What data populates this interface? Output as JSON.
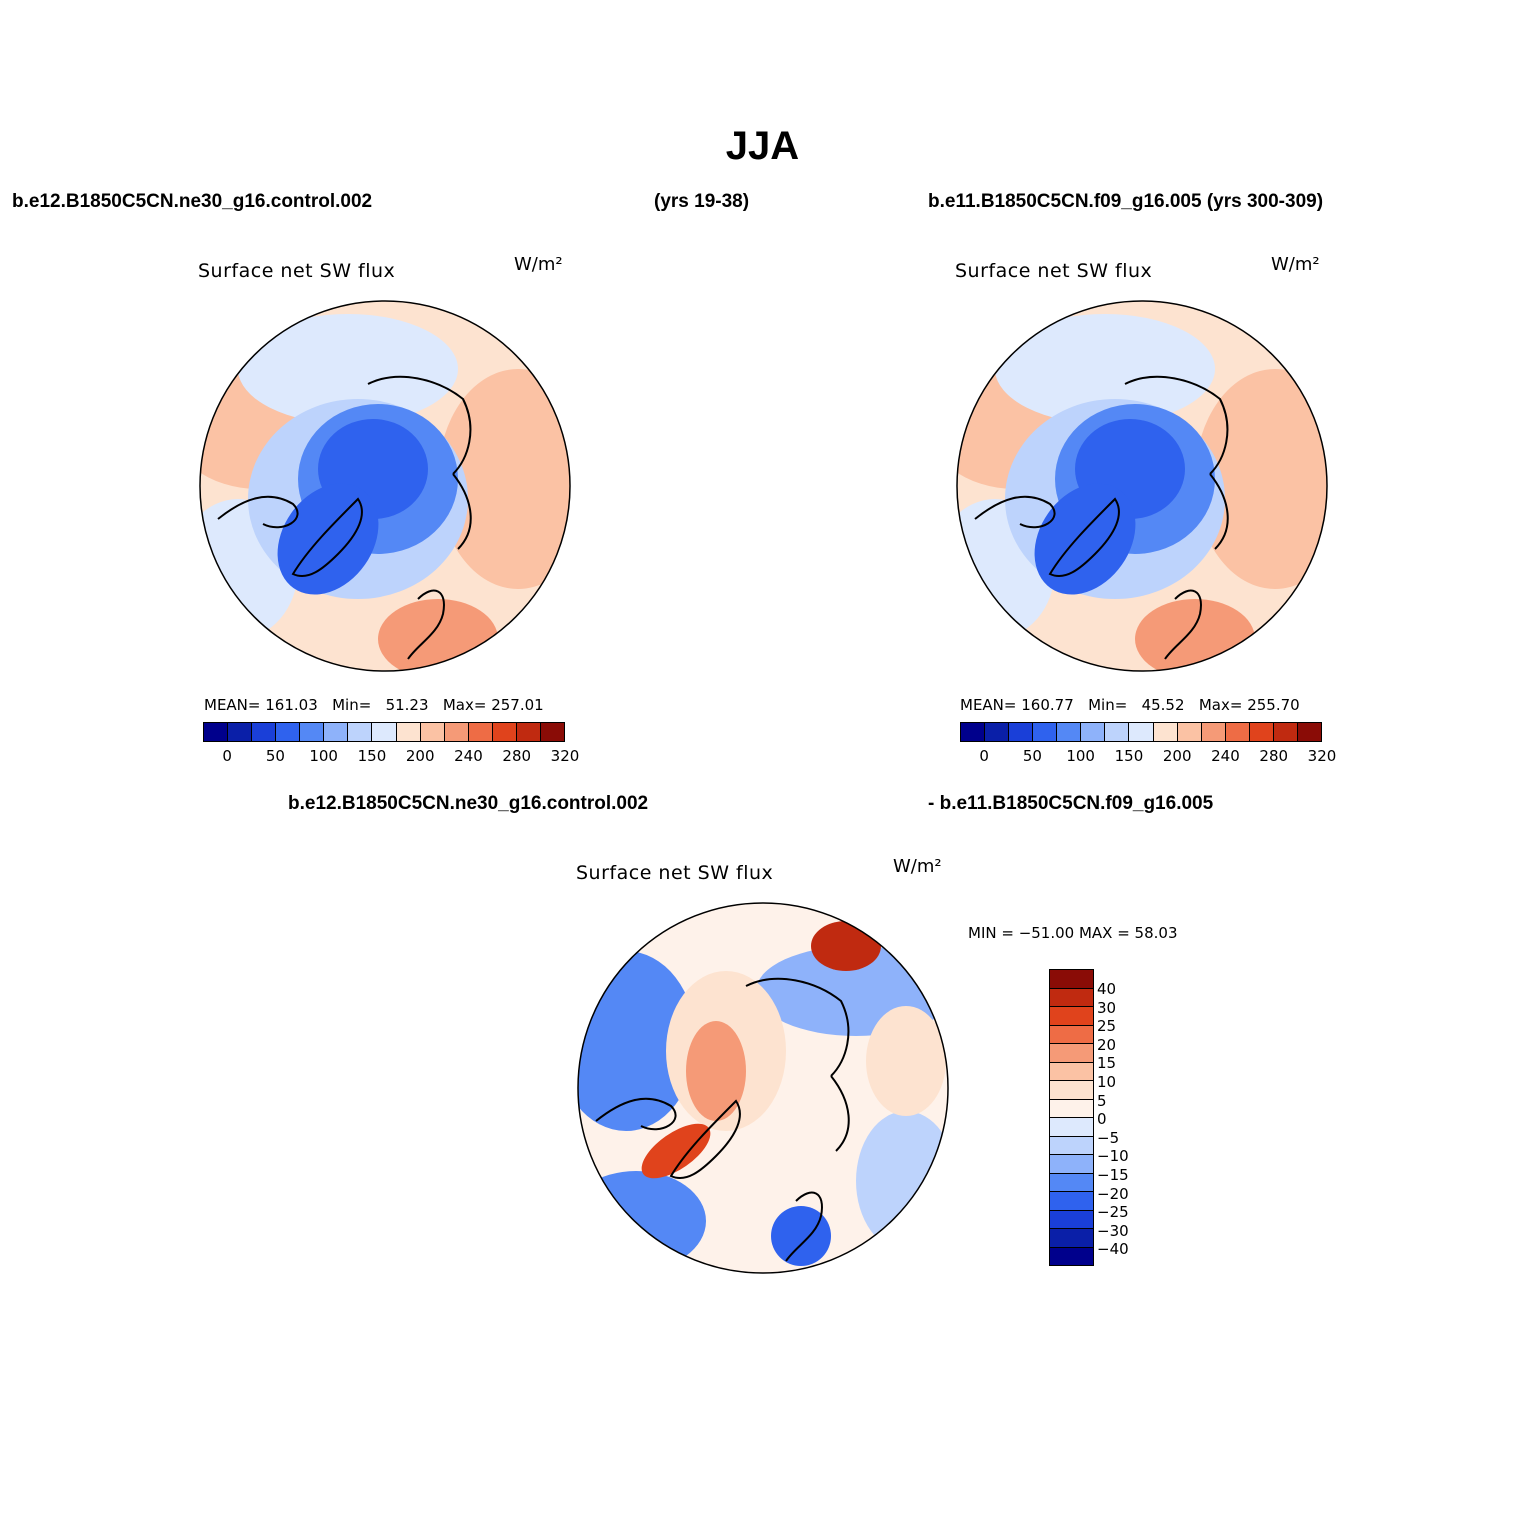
{
  "title": "JJA",
  "header": {
    "case1": "b.e12.B1850C5CN.ne30_g16.control.002",
    "years1": "(yrs 19-38)",
    "case2_with_years": "b.e11.B1850C5CN.f09_g16.005 (yrs 300-309)"
  },
  "panel1": {
    "field": "Surface net SW flux",
    "units": "W/m²",
    "stats": {
      "mean_label": "MEAN=",
      "mean": "161.03",
      "min_label": "Min=",
      "min": "51.23",
      "max_label": "Max=",
      "max": "257.01"
    },
    "colorbar_ticks": [
      "0",
      "50",
      "100",
      "150",
      "200",
      "240",
      "280",
      "320"
    ]
  },
  "panel2": {
    "field": "Surface net SW flux",
    "units": "W/m²",
    "stats": {
      "mean_label": "MEAN=",
      "mean": "160.77",
      "min_label": "Min=",
      "min": "45.52",
      "max_label": "Max=",
      "max": "255.70"
    },
    "colorbar_ticks": [
      "0",
      "50",
      "100",
      "150",
      "200",
      "240",
      "280",
      "320"
    ]
  },
  "diff_header": {
    "left": "b.e12.B1850C5CN.ne30_g16.control.002",
    "right": "- b.e11.B1850C5CN.f09_g16.005"
  },
  "panel3": {
    "field": "Surface net SW flux",
    "units": "W/m²",
    "minmax": "MIN = −51.00 MAX =   58.03",
    "colorbar_labels": [
      "40",
      "30",
      "25",
      "20",
      "15",
      "10",
      "5",
      "0",
      "−5",
      "−10",
      "−15",
      "−20",
      "−25",
      "−30",
      "−40"
    ]
  },
  "colors": {
    "abs_scale": [
      "#00008c",
      "#0a1fa8",
      "#1a3fd8",
      "#2f62ee",
      "#5488f5",
      "#8eb2fa",
      "#bdd3fc",
      "#dde9fd",
      "#fde3d0",
      "#fbc2a4",
      "#f59a77",
      "#ee6c45",
      "#e0431c",
      "#c02a10",
      "#8a0c06"
    ],
    "diff_scale": [
      "#8a0c06",
      "#c02a10",
      "#e0431c",
      "#ee6c45",
      "#f59a77",
      "#fbc2a4",
      "#fde3d0",
      "#fef2ea",
      "#dde9fd",
      "#bdd3fc",
      "#8eb2fa",
      "#5488f5",
      "#2f62ee",
      "#1a3fd8",
      "#0a1fa8",
      "#00008c"
    ]
  }
}
